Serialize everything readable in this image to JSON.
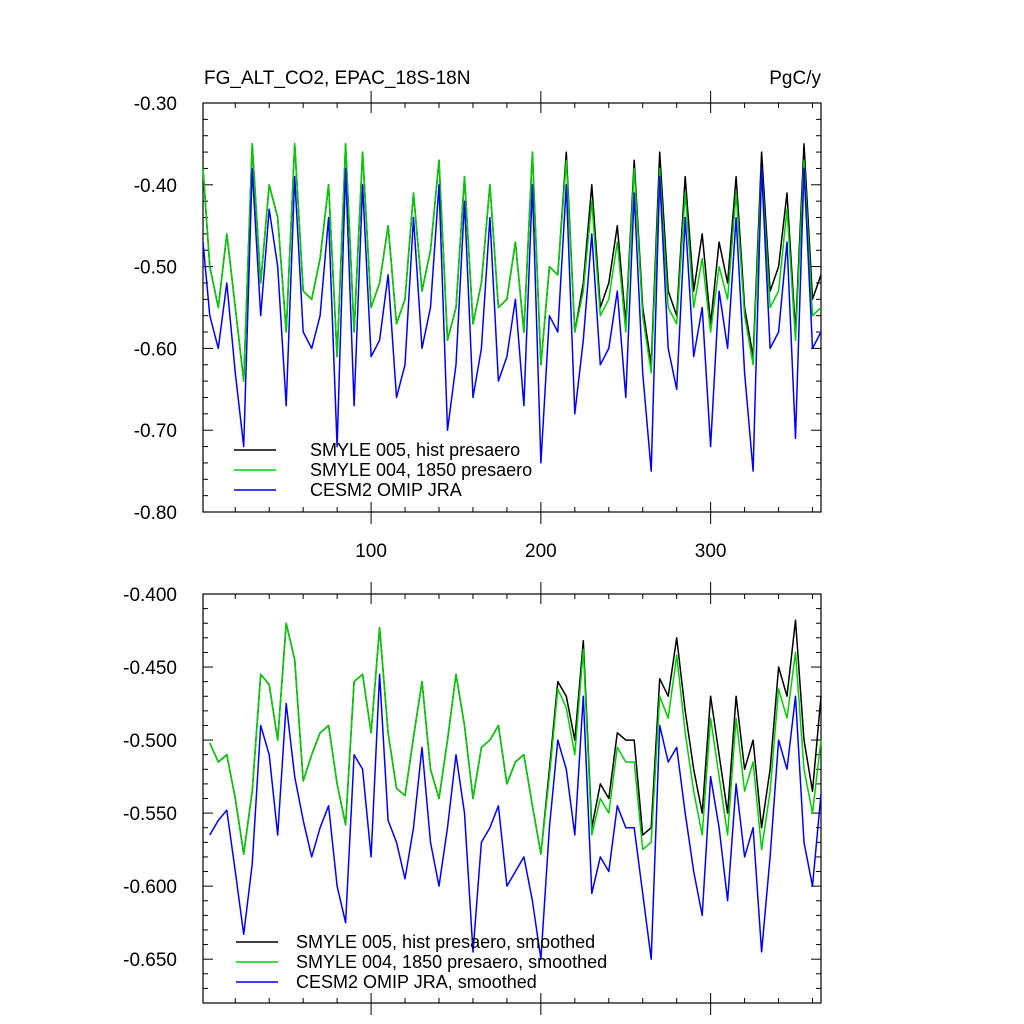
{
  "figure": {
    "title": "FG_ALT_CO2, EPAC_18S-18N",
    "units": "PgC/y"
  },
  "chart_data": [
    {
      "type": "line",
      "panel": "top",
      "xlim": [
        1,
        365
      ],
      "ylim": [
        -0.8,
        -0.3
      ],
      "xticks": [
        100,
        200,
        300
      ],
      "xtick_labels": [
        "100",
        "200",
        "300"
      ],
      "yticks": [
        -0.3,
        -0.4,
        -0.5,
        -0.6,
        -0.7,
        -0.8
      ],
      "ytick_labels": [
        "-0.30",
        "-0.40",
        "-0.50",
        "-0.60",
        "-0.70",
        "-0.80"
      ],
      "legend_position": "bottom-left",
      "x": [
        1,
        5,
        10,
        15,
        20,
        25,
        30,
        35,
        40,
        45,
        50,
        55,
        60,
        65,
        70,
        75,
        80,
        85,
        90,
        95,
        100,
        105,
        110,
        115,
        120,
        125,
        130,
        135,
        140,
        145,
        150,
        155,
        160,
        165,
        170,
        175,
        180,
        185,
        190,
        195,
        200,
        205,
        210,
        215,
        220,
        225,
        230,
        235,
        240,
        245,
        250,
        255,
        260,
        265,
        270,
        275,
        280,
        285,
        290,
        295,
        300,
        305,
        310,
        315,
        320,
        325,
        330,
        335,
        340,
        345,
        350,
        355,
        360,
        365
      ],
      "series": [
        {
          "name": "SMYLE 005, hist presaero",
          "color": "#000000",
          "values": [
            -0.38,
            -0.5,
            -0.55,
            -0.46,
            -0.55,
            -0.64,
            -0.35,
            -0.52,
            -0.4,
            -0.44,
            -0.58,
            -0.35,
            -0.53,
            -0.54,
            -0.49,
            -0.4,
            -0.61,
            -0.35,
            -0.58,
            -0.36,
            -0.55,
            -0.52,
            -0.45,
            -0.57,
            -0.54,
            -0.41,
            -0.53,
            -0.48,
            -0.37,
            -0.59,
            -0.55,
            -0.39,
            -0.57,
            -0.52,
            -0.4,
            -0.55,
            -0.54,
            -0.47,
            -0.58,
            -0.36,
            -0.62,
            -0.5,
            -0.51,
            -0.36,
            -0.58,
            -0.52,
            -0.4,
            -0.55,
            -0.52,
            -0.45,
            -0.57,
            -0.37,
            -0.55,
            -0.62,
            -0.36,
            -0.53,
            -0.56,
            -0.39,
            -0.53,
            -0.46,
            -0.57,
            -0.47,
            -0.52,
            -0.39,
            -0.55,
            -0.61,
            -0.36,
            -0.53,
            -0.5,
            -0.41,
            -0.58,
            -0.35,
            -0.54,
            -0.51
          ]
        },
        {
          "name": "SMYLE 004, 1850 presaero",
          "color": "#00d000",
          "values": [
            -0.38,
            -0.5,
            -0.55,
            -0.46,
            -0.55,
            -0.64,
            -0.35,
            -0.52,
            -0.4,
            -0.44,
            -0.58,
            -0.35,
            -0.53,
            -0.54,
            -0.49,
            -0.4,
            -0.61,
            -0.35,
            -0.58,
            -0.36,
            -0.55,
            -0.52,
            -0.45,
            -0.57,
            -0.54,
            -0.41,
            -0.53,
            -0.48,
            -0.37,
            -0.59,
            -0.55,
            -0.39,
            -0.57,
            -0.52,
            -0.4,
            -0.55,
            -0.54,
            -0.47,
            -0.58,
            -0.36,
            -0.62,
            -0.5,
            -0.51,
            -0.37,
            -0.58,
            -0.53,
            -0.42,
            -0.56,
            -0.54,
            -0.47,
            -0.58,
            -0.38,
            -0.56,
            -0.63,
            -0.38,
            -0.55,
            -0.57,
            -0.41,
            -0.55,
            -0.49,
            -0.58,
            -0.5,
            -0.54,
            -0.41,
            -0.56,
            -0.62,
            -0.38,
            -0.55,
            -0.53,
            -0.43,
            -0.59,
            -0.37,
            -0.56,
            -0.55
          ]
        },
        {
          "name": "CESM2 OMIP JRA",
          "color": "#0000ff",
          "values": [
            -0.47,
            -0.56,
            -0.6,
            -0.52,
            -0.63,
            -0.72,
            -0.38,
            -0.56,
            -0.43,
            -0.5,
            -0.67,
            -0.39,
            -0.58,
            -0.6,
            -0.56,
            -0.44,
            -0.72,
            -0.38,
            -0.67,
            -0.4,
            -0.61,
            -0.59,
            -0.51,
            -0.66,
            -0.62,
            -0.44,
            -0.6,
            -0.55,
            -0.4,
            -0.7,
            -0.62,
            -0.42,
            -0.66,
            -0.6,
            -0.44,
            -0.64,
            -0.61,
            -0.54,
            -0.67,
            -0.4,
            -0.74,
            -0.56,
            -0.58,
            -0.4,
            -0.68,
            -0.59,
            -0.46,
            -0.62,
            -0.6,
            -0.53,
            -0.66,
            -0.41,
            -0.63,
            -0.75,
            -0.39,
            -0.6,
            -0.65,
            -0.44,
            -0.61,
            -0.55,
            -0.72,
            -0.53,
            -0.6,
            -0.44,
            -0.63,
            -0.75,
            -0.38,
            -0.6,
            -0.58,
            -0.47,
            -0.71,
            -0.38,
            -0.6,
            -0.58
          ]
        }
      ]
    },
    {
      "type": "line",
      "panel": "bottom",
      "xlim": [
        1,
        365
      ],
      "ylim": [
        -0.68,
        -0.4
      ],
      "xticks": [
        100,
        200,
        300
      ],
      "yticks": [
        -0.4,
        -0.45,
        -0.5,
        -0.55,
        -0.6,
        -0.65
      ],
      "ytick_labels": [
        "-0.400",
        "-0.450",
        "-0.500",
        "-0.550",
        "-0.600",
        "-0.650"
      ],
      "legend_position": "bottom-left",
      "x": [
        5,
        10,
        15,
        20,
        25,
        30,
        35,
        40,
        45,
        50,
        55,
        60,
        65,
        70,
        75,
        80,
        85,
        90,
        95,
        100,
        105,
        110,
        115,
        120,
        125,
        130,
        135,
        140,
        145,
        150,
        155,
        160,
        165,
        170,
        175,
        180,
        185,
        190,
        195,
        200,
        205,
        210,
        215,
        220,
        225,
        230,
        235,
        240,
        245,
        250,
        255,
        260,
        265,
        270,
        275,
        280,
        285,
        290,
        295,
        300,
        305,
        310,
        315,
        320,
        325,
        330,
        335,
        340,
        345,
        350,
        355,
        360,
        365
      ],
      "series": [
        {
          "name": "SMYLE 005, hist presaero, smoothed",
          "color": "#000000",
          "values": [
            -0.502,
            -0.515,
            -0.51,
            -0.54,
            -0.578,
            -0.535,
            -0.455,
            -0.462,
            -0.5,
            -0.42,
            -0.445,
            -0.528,
            -0.51,
            -0.495,
            -0.49,
            -0.53,
            -0.558,
            -0.46,
            -0.455,
            -0.495,
            -0.423,
            -0.495,
            -0.533,
            -0.538,
            -0.498,
            -0.46,
            -0.52,
            -0.54,
            -0.5,
            -0.455,
            -0.49,
            -0.54,
            -0.505,
            -0.5,
            -0.49,
            -0.53,
            -0.515,
            -0.51,
            -0.545,
            -0.578,
            -0.52,
            -0.46,
            -0.47,
            -0.5,
            -0.432,
            -0.56,
            -0.53,
            -0.54,
            -0.495,
            -0.5,
            -0.5,
            -0.565,
            -0.56,
            -0.458,
            -0.47,
            -0.43,
            -0.48,
            -0.52,
            -0.55,
            -0.47,
            -0.51,
            -0.55,
            -0.47,
            -0.52,
            -0.5,
            -0.56,
            -0.52,
            -0.45,
            -0.47,
            -0.418,
            -0.5,
            -0.535,
            -0.47
          ]
        },
        {
          "name": "SMYLE 004, 1850 presaero, smoothed",
          "color": "#00d000",
          "values": [
            -0.502,
            -0.515,
            -0.51,
            -0.54,
            -0.578,
            -0.535,
            -0.455,
            -0.462,
            -0.5,
            -0.42,
            -0.445,
            -0.528,
            -0.51,
            -0.495,
            -0.49,
            -0.53,
            -0.558,
            -0.46,
            -0.455,
            -0.495,
            -0.423,
            -0.495,
            -0.533,
            -0.538,
            -0.498,
            -0.46,
            -0.52,
            -0.54,
            -0.5,
            -0.455,
            -0.49,
            -0.54,
            -0.505,
            -0.5,
            -0.49,
            -0.53,
            -0.515,
            -0.51,
            -0.545,
            -0.578,
            -0.525,
            -0.465,
            -0.478,
            -0.51,
            -0.438,
            -0.565,
            -0.54,
            -0.55,
            -0.505,
            -0.515,
            -0.515,
            -0.575,
            -0.57,
            -0.47,
            -0.485,
            -0.442,
            -0.495,
            -0.535,
            -0.565,
            -0.485,
            -0.525,
            -0.565,
            -0.485,
            -0.535,
            -0.515,
            -0.575,
            -0.535,
            -0.465,
            -0.485,
            -0.44,
            -0.52,
            -0.55,
            -0.5
          ]
        },
        {
          "name": "CESM2 OMIP JRA, smoothed",
          "color": "#0000ff",
          "values": [
            -0.565,
            -0.555,
            -0.548,
            -0.59,
            -0.633,
            -0.585,
            -0.49,
            -0.51,
            -0.565,
            -0.475,
            -0.525,
            -0.555,
            -0.58,
            -0.56,
            -0.545,
            -0.6,
            -0.625,
            -0.51,
            -0.52,
            -0.58,
            -0.455,
            -0.555,
            -0.57,
            -0.595,
            -0.56,
            -0.505,
            -0.57,
            -0.6,
            -0.56,
            -0.51,
            -0.55,
            -0.645,
            -0.57,
            -0.56,
            -0.545,
            -0.6,
            -0.59,
            -0.58,
            -0.61,
            -0.65,
            -0.56,
            -0.5,
            -0.52,
            -0.565,
            -0.47,
            -0.605,
            -0.58,
            -0.59,
            -0.545,
            -0.56,
            -0.56,
            -0.605,
            -0.65,
            -0.49,
            -0.515,
            -0.505,
            -0.55,
            -0.59,
            -0.62,
            -0.525,
            -0.56,
            -0.61,
            -0.53,
            -0.58,
            -0.56,
            -0.645,
            -0.58,
            -0.5,
            -0.52,
            -0.47,
            -0.57,
            -0.6,
            -0.537
          ]
        }
      ]
    }
  ]
}
